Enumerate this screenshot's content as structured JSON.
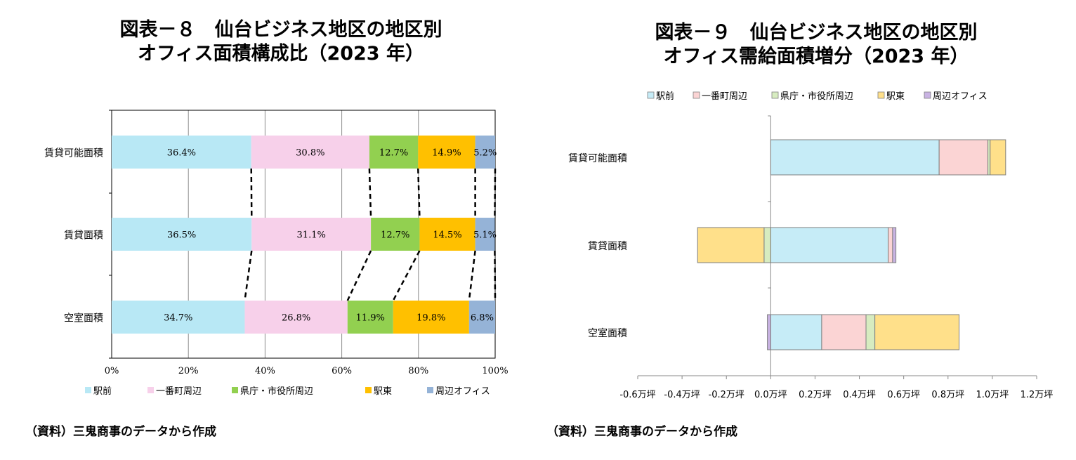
{
  "left": {
    "title_line1": "図表－８　仙台ビジネス地区の地区別",
    "title_line2": "オフィス面積構成比（2023 年）",
    "source": "（資料）三鬼商事のデータから作成"
  },
  "right": {
    "title_line1": "図表－９　仙台ビジネス地区の地区別",
    "title_line2": "オフィス需給面積増分（2023 年）",
    "source": "（資料）三鬼商事のデータから作成"
  },
  "chart_data": [
    {
      "type": "bar",
      "orientation": "horizontal",
      "stacked": "percent",
      "categories": [
        "賃貸可能面積",
        "賃貸面積",
        "空室面積"
      ],
      "series": [
        {
          "name": "駅前",
          "color": "#b8e8f5",
          "values": [
            36.4,
            36.5,
            34.7
          ],
          "labels": [
            "36.4%",
            "36.5%",
            "34.7%"
          ]
        },
        {
          "name": "一番町周辺",
          "color": "#f7d0ea",
          "values": [
            30.8,
            31.1,
            26.8
          ],
          "labels": [
            "30.8%",
            "31.1%",
            "26.8%"
          ]
        },
        {
          "name": "県庁・市役所周辺",
          "color": "#92d050",
          "values": [
            12.7,
            12.7,
            11.9
          ],
          "labels": [
            "12.7%",
            "12.7%",
            "11.9%"
          ]
        },
        {
          "name": "駅東",
          "color": "#ffc000",
          "values": [
            14.9,
            14.5,
            19.8
          ],
          "labels": [
            "14.9%",
            "14.5%",
            "19.8%"
          ]
        },
        {
          "name": "周辺オフィス",
          "color": "#95b3d7",
          "values": [
            5.2,
            5.1,
            6.8
          ],
          "labels": [
            "5.2%",
            "5.1%",
            "6.8%"
          ]
        }
      ],
      "xticks": [
        "0%",
        "20%",
        "40%",
        "60%",
        "80%",
        "100%"
      ],
      "xlim": [
        0,
        100
      ],
      "grid": true,
      "connector_lines": "dashed",
      "legend": "bottom"
    },
    {
      "type": "bar",
      "orientation": "horizontal",
      "stacked": true,
      "categories": [
        "賃貸可能面積",
        "賃貸面積",
        "空室面積"
      ],
      "series": [
        {
          "name": "駅前",
          "color": "#c6ecf7",
          "values": [
            0.76,
            0.53,
            0.23
          ]
        },
        {
          "name": "一番町周辺",
          "color": "#fbd4d4",
          "values": [
            0.22,
            0.02,
            0.2
          ]
        },
        {
          "name": "県庁・市役所周辺",
          "color": "#d7ecc0",
          "values": [
            0.01,
            -0.03,
            0.04
          ]
        },
        {
          "name": "駅東",
          "color": "#ffe08a",
          "values": [
            0.07,
            -0.3,
            0.38
          ]
        },
        {
          "name": "周辺オフィス",
          "color": "#c9b3e3",
          "values": [
            0.0,
            0.015,
            -0.015
          ]
        }
      ],
      "xticks": [
        "-0.6万坪",
        "-0.4万坪",
        "-0.2万坪",
        "0.0万坪",
        "0.2万坪",
        "0.4万坪",
        "0.6万坪",
        "0.8万坪",
        "1.0万坪",
        "1.2万坪"
      ],
      "xlim": [
        -0.6,
        1.2
      ],
      "grid": false,
      "legend": "top"
    }
  ]
}
